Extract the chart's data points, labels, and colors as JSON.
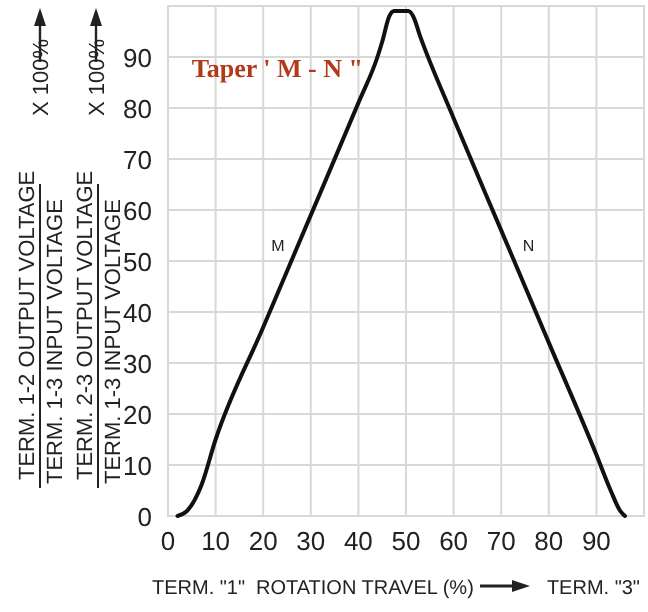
{
  "chart_data": {
    "type": "line",
    "title": "Taper ' M - N \"",
    "xlabel": "ROTATION TRAVEL (%)",
    "x": [
      2,
      4,
      7,
      10,
      20,
      30,
      40,
      44,
      45,
      46.5,
      47.5,
      50.5,
      51.5,
      53,
      60,
      70,
      80,
      90,
      93,
      95,
      96
    ],
    "series": [
      {
        "color": "#111111",
        "values": [
          0,
          1,
          6,
          15,
          37,
          59,
          81,
          90,
          93,
          98,
          99,
          99,
          98,
          94,
          78,
          56,
          34,
          12,
          5,
          1,
          0
        ]
      }
    ],
    "xlim": [
      0,
      100
    ],
    "ylim": [
      0,
      100
    ],
    "xticks": [
      0,
      10,
      20,
      30,
      40,
      50,
      60,
      70,
      80,
      90
    ],
    "yticks": [
      0,
      10,
      20,
      30,
      40,
      50,
      60,
      70,
      80,
      90
    ],
    "grid": true,
    "marker": "none",
    "line_style": "solid",
    "annotations": [
      "TERM. 1-2 OUTPUT VOLTAGE",
      "TERM. 1-3 INPUT VOLTAGE",
      "X 100%",
      "TERM. 2-3 OUTPUT VOLTAGE",
      "TERM. 1-3 INPUT VOLTAGE",
      "X 100%",
      "TERM. \"1\"",
      "TERM. \"3\"",
      {
        "text": "M",
        "x": 27,
        "y": 52
      },
      {
        "text": "N",
        "x": 72,
        "y": 52
      }
    ]
  }
}
